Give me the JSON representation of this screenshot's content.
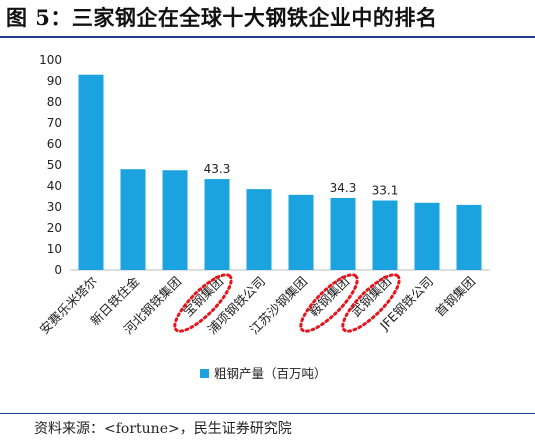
{
  "header": {
    "title": "图 5：三家钢企在全球十大钢铁企业中的排名"
  },
  "footer": {
    "source": "资料来源：<fortune>，民生证券研究院"
  },
  "chart_data": {
    "type": "bar",
    "categories": [
      "安赛乐米塔尔",
      "新日铁住金",
      "河北钢铁集团",
      "宝钢集团",
      "浦项钢铁公司",
      "江苏沙钢集团",
      "鞍钢集团",
      "武钢集团",
      "JFE钢铁公司",
      "首钢集团"
    ],
    "series": [
      {
        "name": "粗钢产量（百万吨）",
        "values": [
          93,
          48,
          47.5,
          43.3,
          38.5,
          35.8,
          34.3,
          33.1,
          32,
          31
        ],
        "color": "#1aa3df",
        "data_labels": [
          "",
          "",
          "",
          "43.3",
          "",
          "",
          "34.3",
          "33.1",
          "",
          ""
        ]
      }
    ],
    "ylim": [
      0,
      100
    ],
    "yticks": [
      "0",
      "10",
      "20",
      "30",
      "40",
      "50",
      "60",
      "70",
      "80",
      "90",
      "100"
    ],
    "grid": false,
    "legend_position": "bottom",
    "highlighted_categories": [
      "宝钢集团",
      "鞍钢集团",
      "武钢集团"
    ],
    "highlight_style": "red dotted ellipse",
    "highlight_color": "#e8141c"
  }
}
